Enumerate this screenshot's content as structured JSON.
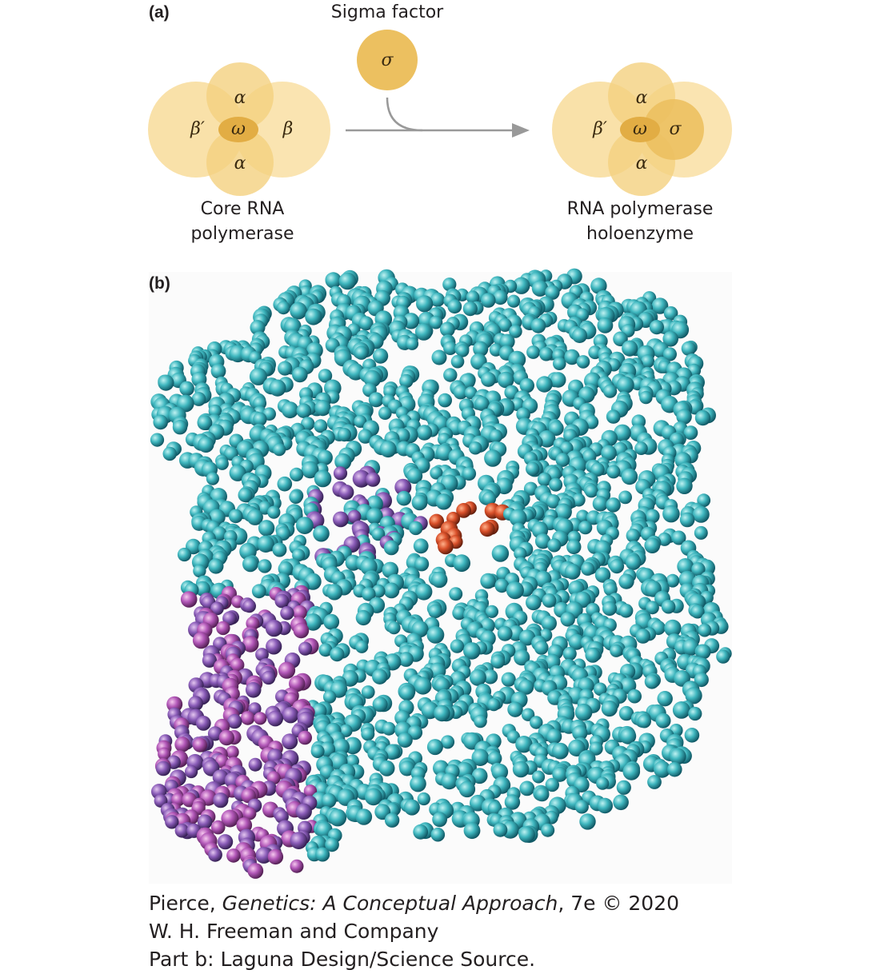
{
  "panel_a": {
    "label": "(a)",
    "sigma_factor": {
      "label": "Sigma factor",
      "symbol": "σ"
    },
    "core": {
      "subunits": {
        "alpha_top": "α",
        "beta_prime": "β′",
        "omega": "ω",
        "beta": "β",
        "alpha_bottom": "α"
      },
      "caption": [
        "Core RNA",
        "polymerase"
      ]
    },
    "holoenzyme": {
      "subunits": {
        "alpha_top": "α",
        "beta_prime": "β′",
        "omega": "ω",
        "sigma": "σ",
        "alpha_bottom": "α"
      },
      "caption": [
        "RNA polymerase",
        "holoenzyme"
      ]
    }
  },
  "panel_b": {
    "label": "(b)"
  },
  "credits": {
    "line1": {
      "before": "Pierce, ",
      "title": "Genetics: A Conceptual Approach",
      "after": ", 7e © 2020"
    },
    "line2": "W. H. Freeman and Company",
    "line3": "Part b: Laguna Design/Science Source."
  }
}
